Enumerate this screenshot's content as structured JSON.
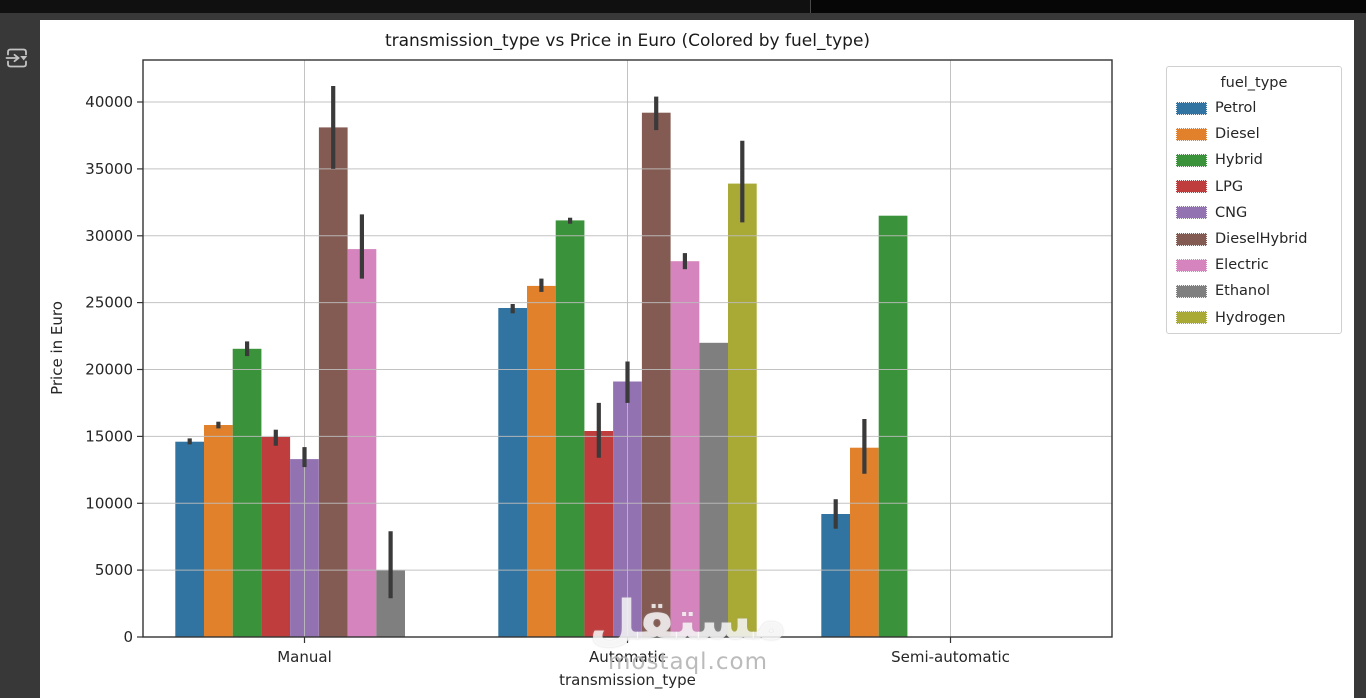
{
  "window": {
    "sidebar_button": "run-forward",
    "chrome_color": "#383838",
    "topbar_color": "#101010",
    "figure_bg": "#ffffff"
  },
  "watermark": {
    "arabic": "مستقل",
    "domain": "mostaql.com"
  },
  "chart_data": {
    "type": "bar",
    "title": "transmission_type vs Price in Euro (Colored by fuel_type)",
    "xlabel": "transmission_type",
    "ylabel": "Price in Euro",
    "categories": [
      "Manual",
      "Automatic",
      "Semi-automatic"
    ],
    "ylim": [
      0,
      43000
    ],
    "yticks": [
      0,
      5000,
      10000,
      15000,
      20000,
      25000,
      30000,
      35000,
      40000
    ],
    "grid": true,
    "legend_title": "fuel_type",
    "legend_position": "outside upper right",
    "series": [
      {
        "name": "Petrol",
        "color": "#3274a1",
        "values": [
          14600,
          24600,
          9200
        ],
        "errors": [
          [
            14400,
            14850
          ],
          [
            24200,
            24900
          ],
          [
            8100,
            10300
          ]
        ]
      },
      {
        "name": "Diesel",
        "color": "#e1812c",
        "values": [
          15850,
          26250,
          14150
        ],
        "errors": [
          [
            15600,
            16100
          ],
          [
            25800,
            26800
          ],
          [
            12200,
            16300
          ]
        ]
      },
      {
        "name": "Hybrid",
        "color": "#3a923a",
        "values": [
          21550,
          31150,
          31500
        ],
        "errors": [
          [
            21000,
            22100
          ],
          [
            30900,
            31350
          ],
          null
        ]
      },
      {
        "name": "LPG",
        "color": "#c03d3e",
        "values": [
          14950,
          15400,
          null
        ],
        "errors": [
          [
            14300,
            15500
          ],
          [
            13400,
            17500
          ],
          null
        ]
      },
      {
        "name": "CNG",
        "color": "#9372b2",
        "values": [
          13300,
          19100,
          null
        ],
        "errors": [
          [
            12700,
            14200
          ],
          [
            17500,
            20600
          ],
          null
        ]
      },
      {
        "name": "DieselHybrid",
        "color": "#845b53",
        "values": [
          38100,
          39200,
          null
        ],
        "errors": [
          [
            35000,
            41200
          ],
          [
            37900,
            40400
          ],
          null
        ]
      },
      {
        "name": "Electric",
        "color": "#d584bd",
        "values": [
          29000,
          28100,
          null
        ],
        "errors": [
          [
            26800,
            31600
          ],
          [
            27500,
            28700
          ],
          null
        ]
      },
      {
        "name": "Ethanol",
        "color": "#7f7f7f",
        "values": [
          5000,
          22000,
          null
        ],
        "errors": [
          [
            2900,
            7900
          ],
          null,
          null
        ]
      },
      {
        "name": "Hydrogen",
        "color": "#a9a935",
        "values": [
          null,
          33900,
          null
        ],
        "errors": [
          null,
          [
            31000,
            37100
          ],
          null
        ]
      }
    ],
    "style": {
      "grid_color": "#bdbdbd",
      "spine_color": "#333333",
      "error_bar_color": "#3a3a3a",
      "tick_text_color": "#262626"
    }
  }
}
